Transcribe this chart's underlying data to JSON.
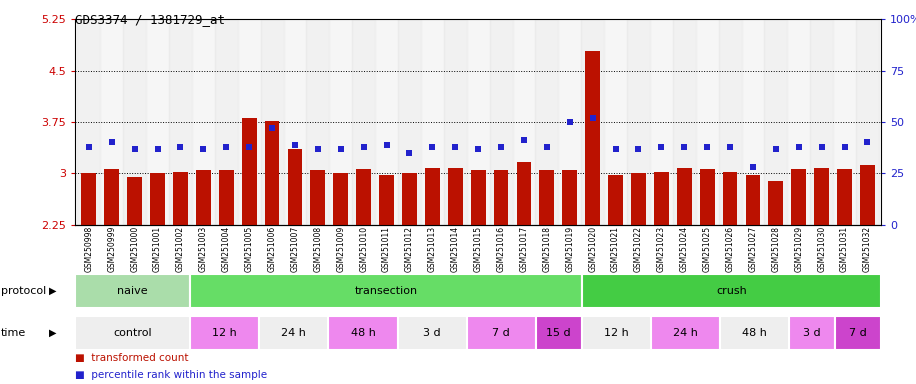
{
  "title": "GDS3374 / 1381729_at",
  "samples": [
    "GSM250998",
    "GSM250999",
    "GSM251000",
    "GSM251001",
    "GSM251002",
    "GSM251003",
    "GSM251004",
    "GSM251005",
    "GSM251006",
    "GSM251007",
    "GSM251008",
    "GSM251009",
    "GSM251010",
    "GSM251011",
    "GSM251012",
    "GSM251013",
    "GSM251014",
    "GSM251015",
    "GSM251016",
    "GSM251017",
    "GSM251018",
    "GSM251019",
    "GSM251020",
    "GSM251021",
    "GSM251022",
    "GSM251023",
    "GSM251024",
    "GSM251025",
    "GSM251026",
    "GSM251027",
    "GSM251028",
    "GSM251029",
    "GSM251030",
    "GSM251031",
    "GSM251032"
  ],
  "bar_values": [
    3.01,
    3.06,
    2.95,
    3.01,
    3.02,
    3.05,
    3.05,
    3.8,
    3.76,
    3.35,
    3.05,
    3.0,
    3.06,
    2.97,
    3.01,
    3.07,
    3.08,
    3.05,
    3.05,
    3.16,
    3.05,
    3.05,
    4.78,
    2.97,
    3.01,
    3.02,
    3.07,
    3.06,
    3.02,
    2.97,
    2.88,
    3.06,
    3.07,
    3.06,
    3.12
  ],
  "percentile_values": [
    38,
    40,
    37,
    37,
    38,
    37,
    38,
    38,
    47,
    39,
    37,
    37,
    38,
    39,
    35,
    38,
    38,
    37,
    38,
    41,
    38,
    50,
    52,
    37,
    37,
    38,
    38,
    38,
    38,
    28,
    37,
    38,
    38,
    38,
    40
  ],
  "ymin": 2.25,
  "ymax": 5.25,
  "yticks": [
    2.25,
    3.0,
    3.75,
    4.5,
    5.25
  ],
  "ytick_labels": [
    "2.25",
    "3",
    "3.75",
    "4.5",
    "5.25"
  ],
  "right_yticks": [
    0,
    25,
    50,
    75,
    100
  ],
  "right_ytick_labels": [
    "0",
    "25",
    "50",
    "75",
    "100%"
  ],
  "bar_color": "#bb1100",
  "dot_color": "#2222cc",
  "bar_width": 0.65,
  "protocol_groups": [
    {
      "label": "naive",
      "start": 0,
      "end": 4,
      "color": "#aaddaa"
    },
    {
      "label": "transection",
      "start": 5,
      "end": 21,
      "color": "#66dd66"
    },
    {
      "label": "crush",
      "start": 22,
      "end": 34,
      "color": "#44cc44"
    }
  ],
  "time_groups": [
    {
      "label": "control",
      "start": 0,
      "end": 4,
      "color": "#eeeeee"
    },
    {
      "label": "12 h",
      "start": 5,
      "end": 7,
      "color": "#ee88ee"
    },
    {
      "label": "24 h",
      "start": 8,
      "end": 10,
      "color": "#eeeeee"
    },
    {
      "label": "48 h",
      "start": 11,
      "end": 13,
      "color": "#ee88ee"
    },
    {
      "label": "3 d",
      "start": 14,
      "end": 16,
      "color": "#eeeeee"
    },
    {
      "label": "7 d",
      "start": 17,
      "end": 19,
      "color": "#ee88ee"
    },
    {
      "label": "15 d",
      "start": 20,
      "end": 21,
      "color": "#cc44cc"
    },
    {
      "label": "12 h",
      "start": 22,
      "end": 24,
      "color": "#eeeeee"
    },
    {
      "label": "24 h",
      "start": 25,
      "end": 27,
      "color": "#ee88ee"
    },
    {
      "label": "48 h",
      "start": 28,
      "end": 30,
      "color": "#eeeeee"
    },
    {
      "label": "3 d",
      "start": 31,
      "end": 32,
      "color": "#ee88ee"
    },
    {
      "label": "7 d",
      "start": 33,
      "end": 34,
      "color": "#cc44cc"
    }
  ],
  "legend_bar_label": "transformed count",
  "legend_dot_label": "percentile rank within the sample",
  "protocol_label": "protocol",
  "time_label": "time"
}
